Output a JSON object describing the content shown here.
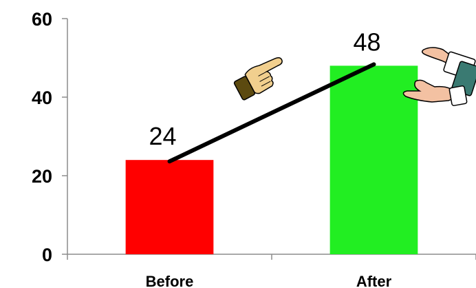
{
  "chart_data": {
    "type": "bar",
    "categories": [
      "Before",
      "After"
    ],
    "values": [
      24,
      48
    ],
    "data_labels": [
      "24",
      "48"
    ],
    "ylim": [
      0,
      60
    ],
    "y_ticks": [
      "0",
      "20",
      "40",
      "60"
    ],
    "colors": [
      "#ff0000",
      "#22ee22"
    ],
    "grid": false,
    "legend": "none",
    "overlay": "trend-line",
    "icons": [
      "pointing-hand-icon",
      "clapping-hands-icon"
    ]
  }
}
